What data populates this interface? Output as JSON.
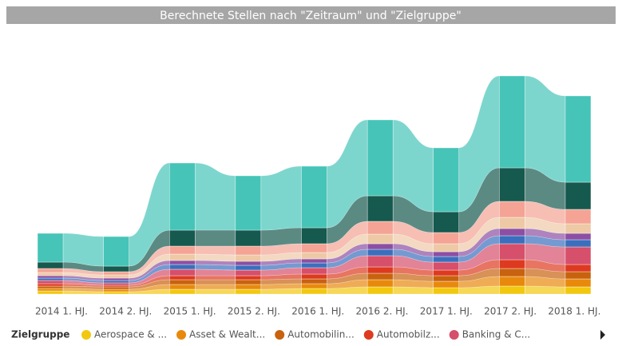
{
  "chart_data": {
    "type": "ribbon",
    "title": "Berechnete Stellen nach \"Zeitraum\" und \"Zielgruppe\"",
    "legend_title": "Zielgruppe",
    "categories": [
      "2014 1. HJ.",
      "2014 2. HJ.",
      "2015 1. HJ.",
      "2015 2. HJ.",
      "2016 1. HJ.",
      "2016 2. HJ.",
      "2017 1. HJ.",
      "2017 2. HJ.",
      "2018 1. HJ."
    ],
    "series": [
      {
        "name": "Aerospace & ...",
        "color": "#f2c80f",
        "values": [
          4,
          3,
          6,
          6,
          7,
          9,
          8,
          10,
          9
        ]
      },
      {
        "name": "Asset & Wealt...",
        "color": "#e8890c",
        "values": [
          3,
          3,
          6,
          6,
          6,
          9,
          8,
          12,
          10
        ]
      },
      {
        "name": "Automobilin...",
        "color": "#c8620e",
        "values": [
          3,
          3,
          6,
          6,
          6,
          8,
          7,
          10,
          9
        ]
      },
      {
        "name": "Automobilz...",
        "color": "#dd3a1f",
        "values": [
          3,
          2,
          5,
          5,
          6,
          8,
          7,
          11,
          9
        ]
      },
      {
        "name": "Banking & C...",
        "color": "#d64f6b",
        "values": [
          4,
          3,
          8,
          7,
          8,
          14,
          10,
          20,
          22
        ]
      },
      {
        "color": "#3b6fbd",
        "values": [
          3,
          3,
          6,
          6,
          6,
          8,
          7,
          10,
          9
        ]
      },
      {
        "color": "#8c4fa3",
        "values": [
          3,
          3,
          5,
          5,
          5,
          7,
          6,
          9,
          8
        ]
      },
      {
        "color": "#eec9a6",
        "values": [
          4,
          4,
          8,
          8,
          8,
          12,
          10,
          14,
          12
        ]
      },
      {
        "color": "#f4a394",
        "values": [
          5,
          4,
          10,
          11,
          11,
          16,
          14,
          20,
          18
        ]
      },
      {
        "color": "#16594e",
        "values": [
          8,
          7,
          20,
          20,
          20,
          32,
          26,
          42,
          34
        ]
      },
      {
        "color": "#46c4b8",
        "values": [
          36,
          37,
          84,
          68,
          77,
          95,
          80,
          115,
          108
        ]
      }
    ]
  }
}
